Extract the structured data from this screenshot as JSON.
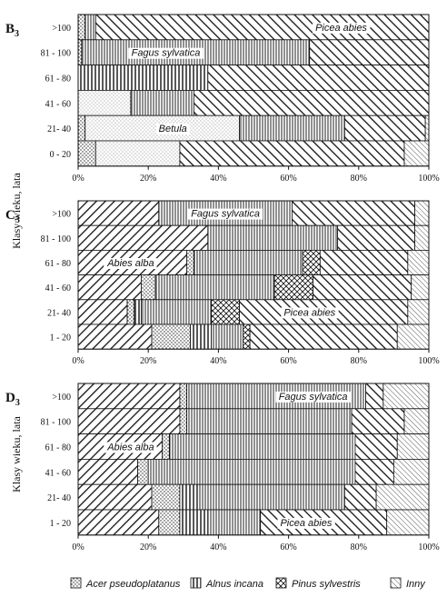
{
  "chart_data": {
    "type": "bar",
    "stacked": true,
    "orientation": "horizontal",
    "xlim": [
      0,
      100
    ],
    "x_ticks": [
      "0%",
      "20%",
      "40%",
      "60%",
      "80%",
      "100%"
    ],
    "ylabel": "Klasy wieku, lata",
    "series_order": [
      "Abies alba",
      "Acer pseudoplatanus",
      "Betula",
      "Alnus incana",
      "Fagus sylvatica",
      "Pinus sylvestris",
      "Picea abies",
      "Inny"
    ],
    "legend": [
      "Acer pseudoplatanus",
      "Alnus incana",
      "Pinus sylvestris",
      "Inny"
    ],
    "panels": [
      {
        "letter": "B",
        "subscript": "3",
        "categories": [
          ">100",
          "81 - 100",
          "61 - 80",
          "41 - 60",
          "21- 40",
          "0 - 20"
        ],
        "rows": [
          {
            "Acer pseudoplatanus": 2,
            "Fagus sylvatica": 3,
            "Picea abies": 95
          },
          {
            "Acer pseudoplatanus": 1,
            "Fagus sylvatica": 65,
            "Picea abies": 34
          },
          {
            "Alnus incana": 37,
            "Picea abies": 63
          },
          {
            "Betula": 15,
            "Fagus sylvatica": 18,
            "Picea abies": 67
          },
          {
            "Acer pseudoplatanus": 2,
            "Betula": 44,
            "Fagus sylvatica": 30,
            "Picea abies": 23,
            "Inny": 1
          },
          {
            "Acer pseudoplatanus": 5,
            "Betula": 24,
            "Picea abies": 64,
            "Inny": 7
          }
        ],
        "labels": [
          {
            "text": "Picea abies",
            "row": 0,
            "at": 75
          },
          {
            "text": "Fagus sylvatica",
            "row": 1,
            "at": 25
          },
          {
            "text": "Betula",
            "row": 4,
            "at": 27
          }
        ]
      },
      {
        "letter": "C",
        "subscript": "3",
        "categories": [
          ">100",
          "81 - 100",
          "61 - 80",
          "41 - 60",
          "21- 40",
          "1 - 20"
        ],
        "rows": [
          {
            "Abies alba": 23,
            "Fagus sylvatica": 38,
            "Picea abies": 35,
            "Inny": 4
          },
          {
            "Abies alba": 37,
            "Fagus sylvatica": 37,
            "Picea abies": 22,
            "Inny": 4
          },
          {
            "Abies alba": 31,
            "Acer pseudoplatanus": 2,
            "Fagus sylvatica": 31,
            "Picea abies": 25,
            "Pinus sylvestris": 5,
            "Inny": 6
          },
          {
            "Abies alba": 18,
            "Acer pseudoplatanus": 4,
            "Fagus sylvatica": 34,
            "Picea abies": 28,
            "Pinus sylvestris": 11,
            "Inny": 5
          },
          {
            "Abies alba": 14,
            "Acer pseudoplatanus": 2,
            "Alnus incana": 2,
            "Fagus sylvatica": 20,
            "Picea abies": 48,
            "Pinus sylvestris": 8,
            "Inny": 6
          },
          {
            "Abies alba": 21,
            "Alnus incana": 6,
            "Acer pseudoplatanus": 11,
            "Fagus sylvatica": 9,
            "Picea abies": 42,
            "Pinus sylvestris": 2,
            "Inny": 9
          }
        ],
        "labels": [
          {
            "text": "Fagus sylvatica",
            "row": 0,
            "at": 42
          },
          {
            "text": "Abies alba",
            "row": 2,
            "at": 15
          },
          {
            "text": "Picea abies",
            "row": 4,
            "at": 66
          }
        ]
      },
      {
        "letter": "D",
        "subscript": "3",
        "categories": [
          ">100",
          "81 - 100",
          "61 - 80",
          "41 - 60",
          "21- 40",
          "1 - 20"
        ],
        "rows": [
          {
            "Abies alba": 29,
            "Acer pseudoplatanus": 2,
            "Fagus sylvatica": 51,
            "Picea abies": 5,
            "Inny": 13
          },
          {
            "Abies alba": 29,
            "Acer pseudoplatanus": 2,
            "Fagus sylvatica": 47,
            "Picea abies": 15,
            "Inny": 7
          },
          {
            "Abies alba": 24,
            "Acer pseudoplatanus": 2,
            "Fagus sylvatica": 53,
            "Picea abies": 12,
            "Inny": 9
          },
          {
            "Abies alba": 17,
            "Acer pseudoplatanus": 3,
            "Fagus sylvatica": 59,
            "Picea abies": 11,
            "Inny": 10
          },
          {
            "Abies alba": 21,
            "Acer pseudoplatanus": 8,
            "Alnus incana": 5,
            "Fagus sylvatica": 42,
            "Picea abies": 9,
            "Inny": 15
          },
          {
            "Abies alba": 23,
            "Acer pseudoplatanus": 6,
            "Alnus incana": 8,
            "Fagus sylvatica": 15,
            "Picea abies": 36,
            "Inny": 12
          }
        ],
        "labels": [
          {
            "text": "Fagus sylvatica",
            "row": 0,
            "at": 67
          },
          {
            "text": "Abies alba",
            "row": 2,
            "at": 15
          },
          {
            "text": "Picea abies",
            "row": 5,
            "at": 65
          }
        ]
      }
    ]
  }
}
